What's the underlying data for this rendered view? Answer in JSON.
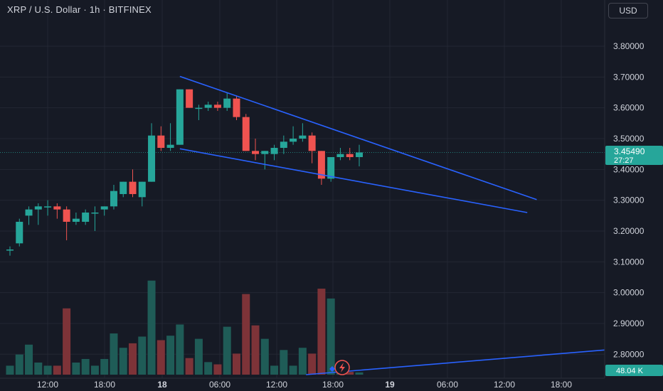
{
  "header": {
    "title": "XRP / U.S. Dollar · 1h · BITFINEX",
    "currency": "USD"
  },
  "colors": {
    "background": "#161a25",
    "up": "#26a69a",
    "down": "#ef5350",
    "volume_up": "#1f5c57",
    "volume_down": "#7d3338",
    "trendline": "#2962ff",
    "grid": "#232733",
    "text": "#d1d4dc"
  },
  "price_badge": {
    "price": "3.45490",
    "countdown": "27:27"
  },
  "volume_badge": "48.04 K",
  "chart_data": {
    "type": "candlestick",
    "symbol": "XRP/USD",
    "interval": "1h",
    "exchange": "BITFINEX",
    "y_ticks": [
      "3.80000",
      "3.70000",
      "3.60000",
      "3.50000",
      "3.40000",
      "3.30000",
      "3.20000",
      "3.10000",
      "3.00000",
      "2.90000",
      "2.80000"
    ],
    "ylim": [
      2.75,
      3.87
    ],
    "x_ticks": [
      "12:00",
      "18:00",
      "18",
      "06:00",
      "12:00",
      "18:00",
      "19",
      "06:00",
      "12:00",
      "18:00"
    ],
    "last_price": 3.4549,
    "candles": [
      {
        "o": 3.14,
        "h": 3.15,
        "l": 3.12,
        "c": 3.14
      },
      {
        "o": 3.16,
        "h": 3.24,
        "l": 3.15,
        "c": 3.23
      },
      {
        "o": 3.25,
        "h": 3.28,
        "l": 3.22,
        "c": 3.27
      },
      {
        "o": 3.27,
        "h": 3.29,
        "l": 3.22,
        "c": 3.28
      },
      {
        "o": 3.28,
        "h": 3.3,
        "l": 3.25,
        "c": 3.28
      },
      {
        "o": 3.28,
        "h": 3.29,
        "l": 3.24,
        "c": 3.27
      },
      {
        "o": 3.27,
        "h": 3.28,
        "l": 3.17,
        "c": 3.23
      },
      {
        "o": 3.23,
        "h": 3.26,
        "l": 3.22,
        "c": 3.24
      },
      {
        "o": 3.23,
        "h": 3.27,
        "l": 3.22,
        "c": 3.26
      },
      {
        "o": 3.26,
        "h": 3.28,
        "l": 3.2,
        "c": 3.26
      },
      {
        "o": 3.27,
        "h": 3.28,
        "l": 3.25,
        "c": 3.28
      },
      {
        "o": 3.28,
        "h": 3.35,
        "l": 3.27,
        "c": 3.33
      },
      {
        "o": 3.32,
        "h": 3.36,
        "l": 3.31,
        "c": 3.36
      },
      {
        "o": 3.36,
        "h": 3.4,
        "l": 3.31,
        "c": 3.32
      },
      {
        "o": 3.31,
        "h": 3.36,
        "l": 3.28,
        "c": 3.36
      },
      {
        "o": 3.36,
        "h": 3.55,
        "l": 3.36,
        "c": 3.51
      },
      {
        "o": 3.51,
        "h": 3.54,
        "l": 3.46,
        "c": 3.47
      },
      {
        "o": 3.47,
        "h": 3.55,
        "l": 3.46,
        "c": 3.48
      },
      {
        "o": 3.48,
        "h": 3.66,
        "l": 3.48,
        "c": 3.66
      },
      {
        "o": 3.66,
        "h": 3.66,
        "l": 3.6,
        "c": 3.6
      },
      {
        "o": 3.6,
        "h": 3.61,
        "l": 3.56,
        "c": 3.6
      },
      {
        "o": 3.6,
        "h": 3.62,
        "l": 3.59,
        "c": 3.61
      },
      {
        "o": 3.61,
        "h": 3.62,
        "l": 3.59,
        "c": 3.6
      },
      {
        "o": 3.6,
        "h": 3.65,
        "l": 3.59,
        "c": 3.63
      },
      {
        "o": 3.63,
        "h": 3.64,
        "l": 3.56,
        "c": 3.57
      },
      {
        "o": 3.57,
        "h": 3.58,
        "l": 3.46,
        "c": 3.46
      },
      {
        "o": 3.46,
        "h": 3.5,
        "l": 3.43,
        "c": 3.45
      },
      {
        "o": 3.45,
        "h": 3.46,
        "l": 3.4,
        "c": 3.46
      },
      {
        "o": 3.45,
        "h": 3.48,
        "l": 3.43,
        "c": 3.47
      },
      {
        "o": 3.47,
        "h": 3.51,
        "l": 3.45,
        "c": 3.49
      },
      {
        "o": 3.49,
        "h": 3.54,
        "l": 3.48,
        "c": 3.5
      },
      {
        "o": 3.5,
        "h": 3.55,
        "l": 3.49,
        "c": 3.51
      },
      {
        "o": 3.51,
        "h": 3.52,
        "l": 3.42,
        "c": 3.46
      },
      {
        "o": 3.46,
        "h": 3.46,
        "l": 3.35,
        "c": 3.37
      },
      {
        "o": 3.37,
        "h": 3.44,
        "l": 3.36,
        "c": 3.44
      },
      {
        "o": 3.44,
        "h": 3.47,
        "l": 3.43,
        "c": 3.45
      },
      {
        "o": 3.45,
        "h": 3.47,
        "l": 3.43,
        "c": 3.44
      },
      {
        "o": 3.44,
        "h": 3.48,
        "l": 3.41,
        "c": 3.455
      }
    ],
    "volume_relative": [
      0.2,
      0.45,
      0.67,
      0.27,
      0.2,
      0.2,
      1.48,
      0.27,
      0.35,
      0.2,
      0.35,
      0.92,
      0.6,
      0.7,
      0.85,
      2.1,
      0.77,
      0.87,
      1.12,
      0.37,
      0.8,
      0.28,
      0.23,
      1.07,
      0.47,
      1.8,
      1.1,
      0.8,
      0.2,
      0.55,
      0.2,
      0.6,
      0.47,
      1.92,
      1.7,
      0.15,
      0.06,
      0.05
    ],
    "trendlines": [
      {
        "name": "upper",
        "x1": 18,
        "y1": 3.702,
        "x2": 55.8,
        "y2": 3.302
      },
      {
        "name": "lower",
        "x1": 18,
        "y1": 3.467,
        "x2": 54.8,
        "y2": 3.26
      },
      {
        "name": "volume",
        "x1": 34,
        "y1": 0,
        "x2": 75,
        "y2": 0.55
      }
    ]
  }
}
